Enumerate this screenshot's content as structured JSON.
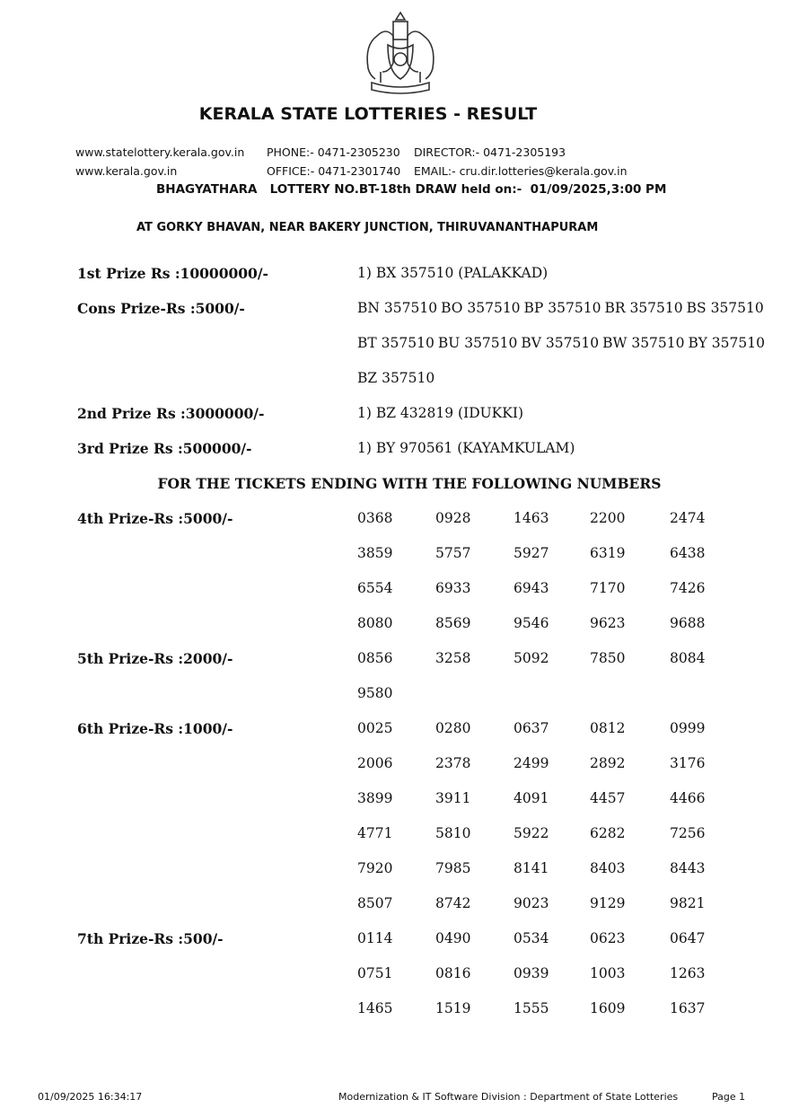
{
  "header": {
    "title": "KERALA STATE LOTTERIES - RESULT",
    "website1": "www.statelottery.kerala.gov.in",
    "website2": "www.kerala.gov.in",
    "phone": "PHONE:- 0471-2305230",
    "office": "OFFICE:- 0471-2301740",
    "director": "DIRECTOR:- 0471-2305193",
    "email": "EMAIL:- cru.dir.lotteries@kerala.gov.in",
    "draw_info": "BHAGYATHARA   LOTTERY NO.BT-18th DRAW held on:-  01/09/2025,3:00 PM",
    "venue": "AT GORKY BHAVAN,  NEAR BAKERY JUNCTION, THIRUVANANTHAPURAM",
    "emblem": "Kerala state emblem"
  },
  "prizes": {
    "first": {
      "label": "1st Prize Rs :10000000/-",
      "value": "1) BX 357510 (PALAKKAD)"
    },
    "cons": {
      "label": "Cons Prize-Rs :5000/-",
      "rows": [
        [
          "BN 357510",
          "BO 357510",
          "BP 357510",
          "BR 357510",
          "BS 357510"
        ],
        [
          "BT 357510",
          "BU 357510",
          "BV 357510",
          "BW 357510",
          "BY 357510"
        ],
        [
          "BZ 357510"
        ]
      ]
    },
    "second": {
      "label": "2nd Prize Rs :3000000/-",
      "value": "1) BZ 432819 (IDUKKI)"
    },
    "third": {
      "label": "3rd Prize Rs :500000/-",
      "value": "1) BY 970561 (KAYAMKULAM)"
    },
    "ending_heading": "FOR THE TICKETS ENDING WITH THE FOLLOWING NUMBERS",
    "ending": [
      {
        "label": "4th Prize-Rs :5000/-",
        "numbers": [
          "0368",
          "0928",
          "1463",
          "2200",
          "2474",
          "3859",
          "5757",
          "5927",
          "6319",
          "6438",
          "6554",
          "6933",
          "6943",
          "7170",
          "7426",
          "8080",
          "8569",
          "9546",
          "9623",
          "9688"
        ]
      },
      {
        "label": "5th Prize-Rs :2000/-",
        "numbers": [
          "0856",
          "3258",
          "5092",
          "7850",
          "8084",
          "9580"
        ]
      },
      {
        "label": "6th Prize-Rs :1000/-",
        "numbers": [
          "0025",
          "0280",
          "0637",
          "0812",
          "0999",
          "2006",
          "2378",
          "2499",
          "2892",
          "3176",
          "3899",
          "3911",
          "4091",
          "4457",
          "4466",
          "4771",
          "5810",
          "5922",
          "6282",
          "7256",
          "7920",
          "7985",
          "8141",
          "8403",
          "8443",
          "8507",
          "8742",
          "9023",
          "9129",
          "9821"
        ]
      },
      {
        "label": "7th Prize-Rs :500/-",
        "numbers": [
          "0114",
          "0490",
          "0534",
          "0623",
          "0647",
          "0751",
          "0816",
          "0939",
          "1003",
          "1263",
          "1465",
          "1519",
          "1555",
          "1609",
          "1637"
        ]
      }
    ]
  },
  "footer": {
    "timestamp": "01/09/2025 16:34:17",
    "division": "Modernization & IT Software Division : Department of State Lotteries",
    "page": "Page 1"
  }
}
